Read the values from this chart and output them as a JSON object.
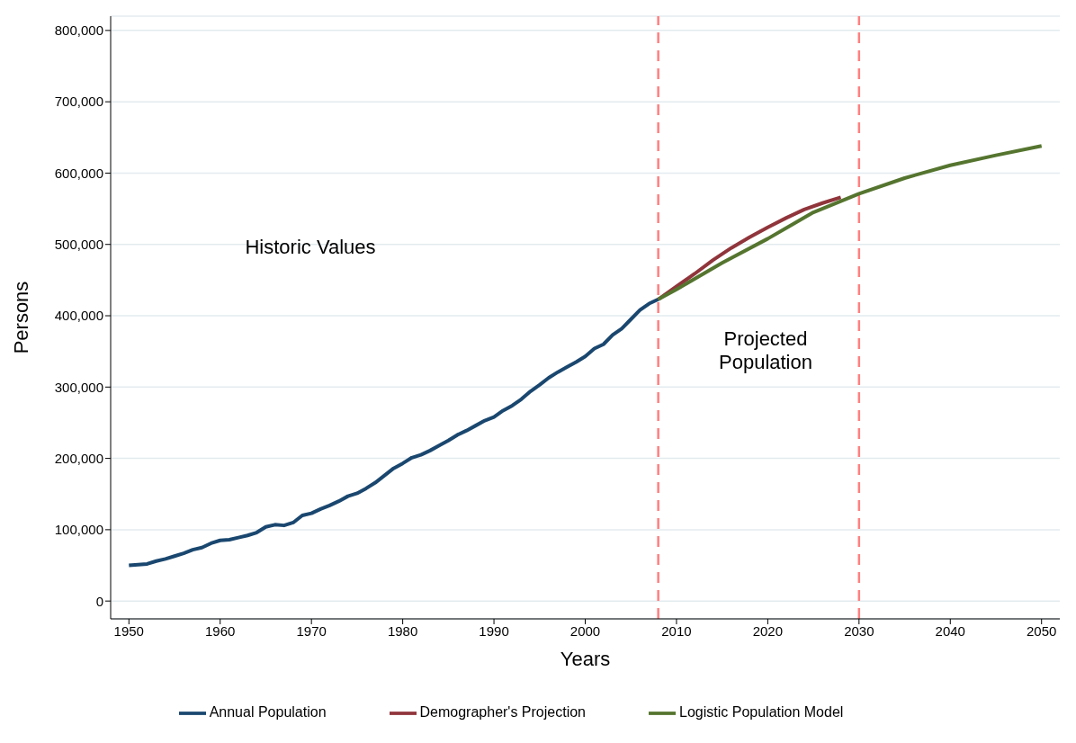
{
  "chart_data": {
    "type": "line",
    "xlabel": "Years",
    "ylabel": "Persons",
    "xlim": [
      1948,
      2052
    ],
    "xticks": [
      1950,
      1960,
      1970,
      1980,
      1990,
      2000,
      2010,
      2020,
      2030,
      2040,
      2050
    ],
    "ylim": [
      -25000,
      820000
    ],
    "yticks": [
      {
        "value": 0,
        "label": "0"
      },
      {
        "value": 100000,
        "label": "100,000"
      },
      {
        "value": 200000,
        "label": "200,000"
      },
      {
        "value": 300000,
        "label": "300,000"
      },
      {
        "value": 400000,
        "label": "400,000"
      },
      {
        "value": 500000,
        "label": "500,000"
      },
      {
        "value": 600000,
        "label": "600,000"
      },
      {
        "value": 700000,
        "label": "700,000"
      },
      {
        "value": 800000,
        "label": "800,000"
      }
    ],
    "grid": "y",
    "legend": "bottom",
    "marker": "none",
    "line_style": "solid",
    "series": [
      {
        "name": "Annual Population",
        "color": "#1a476f",
        "x": [
          1950,
          1951,
          1952,
          1953,
          1954,
          1955,
          1956,
          1957,
          1958,
          1959,
          1960,
          1961,
          1962,
          1963,
          1964,
          1965,
          1966,
          1967,
          1968,
          1969,
          1970,
          1971,
          1972,
          1973,
          1974,
          1975,
          1976,
          1977,
          1978,
          1979,
          1980,
          1981,
          1982,
          1983,
          1984,
          1985,
          1986,
          1987,
          1988,
          1989,
          1990,
          1991,
          1992,
          1993,
          1994,
          1995,
          1996,
          1997,
          1998,
          1999,
          2000,
          2001,
          2002,
          2003,
          2004,
          2005,
          2006,
          2007,
          2008
        ],
        "values": [
          50000,
          51000,
          52000,
          56000,
          59000,
          63000,
          67000,
          72000,
          75000,
          81000,
          85000,
          86000,
          89000,
          92000,
          96000,
          104000,
          107000,
          106000,
          110000,
          120000,
          123000,
          129000,
          134000,
          140000,
          147000,
          151000,
          158000,
          166000,
          176000,
          186000,
          193000,
          201000,
          205000,
          211000,
          218000,
          225000,
          233000,
          239000,
          246000,
          253000,
          258000,
          267000,
          274000,
          283000,
          294000,
          303000,
          313000,
          321000,
          328000,
          335000,
          343000,
          354000,
          360000,
          373000,
          382000,
          395000,
          408000,
          417000,
          423000
        ]
      },
      {
        "name": "Demographer's Projection",
        "color": "#90353b",
        "x": [
          2008,
          2010,
          2012,
          2014,
          2016,
          2018,
          2020,
          2022,
          2024,
          2026,
          2028
        ],
        "values": [
          423000,
          441000,
          459000,
          478000,
          495000,
          510000,
          524000,
          537000,
          549000,
          558000,
          566000
        ]
      },
      {
        "name": "Logistic Population Model",
        "color": "#55752f",
        "x": [
          2008,
          2010,
          2015,
          2020,
          2025,
          2030,
          2035,
          2040,
          2045,
          2050
        ],
        "values": [
          423000,
          437000,
          474000,
          508000,
          545000,
          571000,
          593000,
          611000,
          625000,
          638000
        ]
      }
    ],
    "ref_lines": [
      {
        "axis": "x",
        "value": 2008,
        "color": "#ff8080",
        "line_style": "dashed"
      },
      {
        "axis": "x",
        "value": 2030,
        "color": "#ff8080",
        "line_style": "dashed"
      }
    ],
    "annotations": [
      "Historic Values",
      "Projected Population"
    ]
  }
}
